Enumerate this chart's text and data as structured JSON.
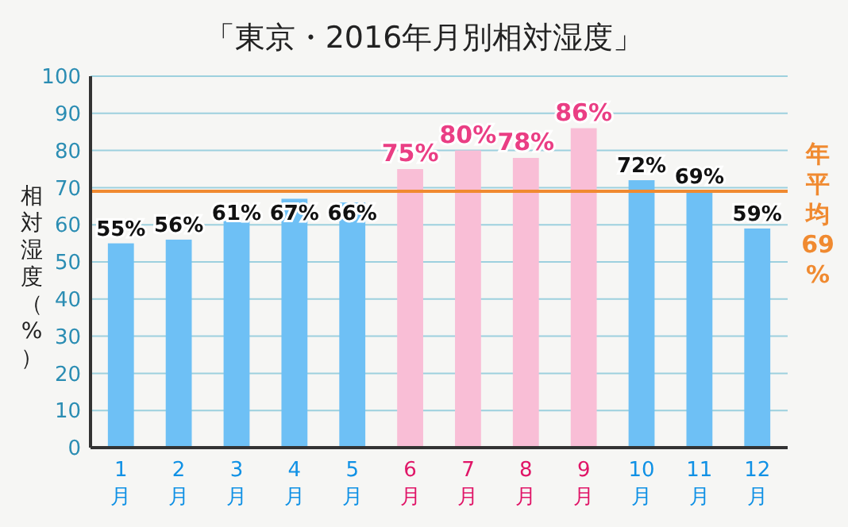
{
  "chart_data": {
    "type": "bar",
    "title": "「東京・2016年月別相対湿度」",
    "ylabel": "相対湿度（%）",
    "categories": [
      "1月",
      "2月",
      "3月",
      "4月",
      "5月",
      "6月",
      "7月",
      "8月",
      "9月",
      "10月",
      "11月",
      "12月"
    ],
    "values": [
      55,
      56,
      61,
      67,
      66,
      75,
      80,
      78,
      86,
      72,
      69,
      59
    ],
    "colors": [
      "#6ec0f5",
      "#6ec0f5",
      "#6ec0f5",
      "#6ec0f5",
      "#6ec0f5",
      "#f9bed6",
      "#f9bed6",
      "#f9bed6",
      "#f9bed6",
      "#6ec0f5",
      "#6ec0f5",
      "#6ec0f5"
    ],
    "value_labels": [
      "55%",
      "56%",
      "61%",
      "67%",
      "66%",
      "75%",
      "80%",
      "78%",
      "86%",
      "72%",
      "69%",
      "59%"
    ],
    "ylim": [
      0,
      100
    ],
    "yticks": [
      0,
      10,
      20,
      30,
      40,
      50,
      60,
      70,
      80,
      90,
      100
    ],
    "grid": "y",
    "ref_lines": [
      {
        "axis": "y",
        "value": 69,
        "label": "年平均69%",
        "color": "#f08a30"
      }
    ]
  }
}
